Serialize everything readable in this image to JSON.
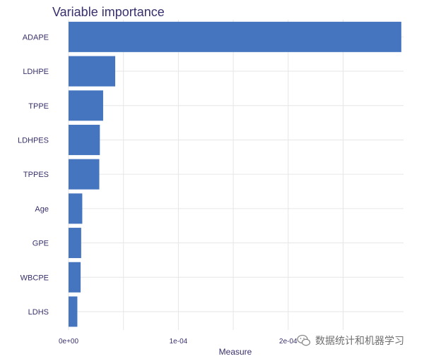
{
  "chart_data": {
    "type": "bar",
    "orientation": "horizontal",
    "title": "Variable importance",
    "xlabel": "Measure",
    "ylabel": "",
    "categories": [
      "ADAPE",
      "LDHPE",
      "TPPE",
      "LDHPES",
      "TPPES",
      "Age",
      "GPE",
      "WBCPE",
      "LDHS"
    ],
    "values": [
      0.000303,
      4.25e-05,
      3.15e-05,
      2.85e-05,
      2.8e-05,
      1.25e-05,
      1.15e-05,
      1.1e-05,
      8e-06
    ],
    "xlim": [
      0,
      0.000305
    ],
    "x_ticks": [
      0,
      0.0001,
      0.0002
    ],
    "x_tick_labels": [
      "0e+00",
      "1e-04",
      "2e-04"
    ],
    "grid": true,
    "colors": {
      "bar": "#4575bf",
      "text": "#37306b",
      "grid": "#e6e6e6"
    }
  },
  "watermark": {
    "text": "数据统计和机器学习",
    "icon": "wechat-icon"
  }
}
